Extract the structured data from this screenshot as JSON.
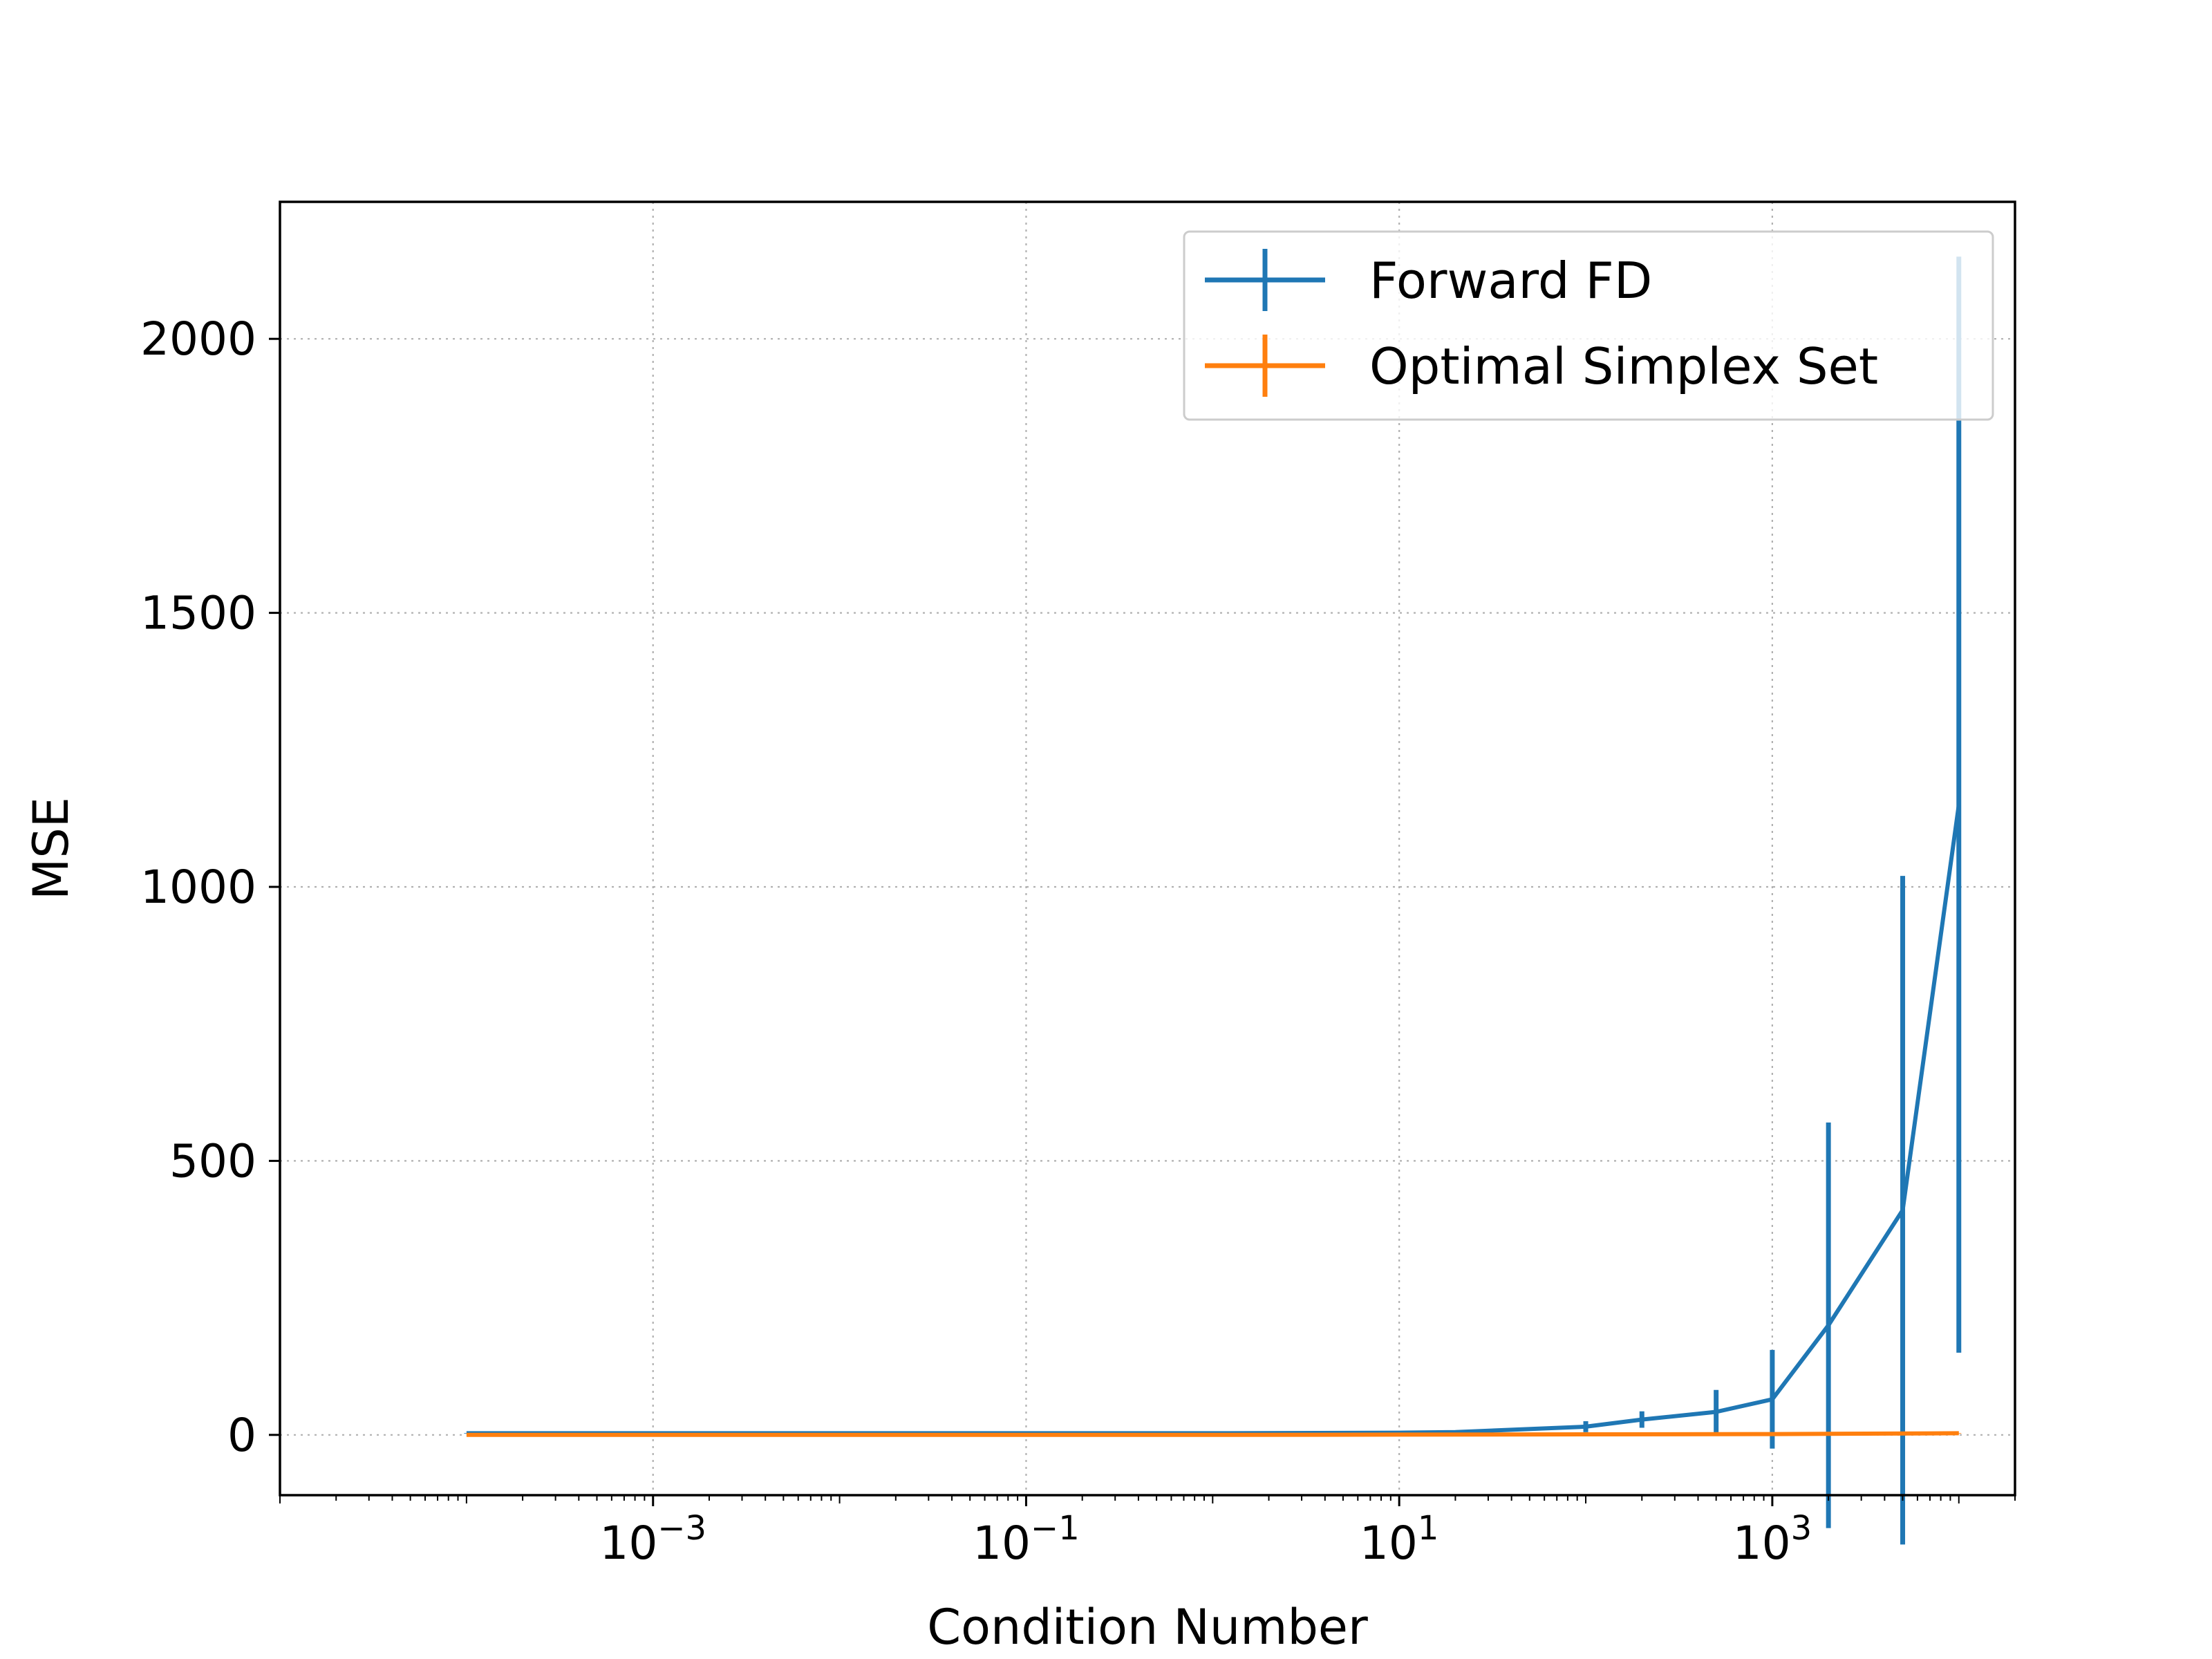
{
  "chart_data": {
    "type": "line",
    "title": "",
    "xlabel": "Condition Number",
    "ylabel": "MSE",
    "xscale": "log",
    "xlim": [
      1e-05,
      20000
    ],
    "ylim": [
      -110,
      2250
    ],
    "grid": true,
    "grid_style": "dotted",
    "legend_position": "top-right",
    "xticks": [
      {
        "value": 0.001,
        "base": "10",
        "exp": "−3"
      },
      {
        "value": 0.1,
        "base": "10",
        "exp": "−1"
      },
      {
        "value": 10,
        "base": "10",
        "exp": "1"
      },
      {
        "value": 1000,
        "base": "10",
        "exp": "3"
      }
    ],
    "yticks": [
      {
        "value": 0,
        "label": "0"
      },
      {
        "value": 500,
        "label": "500"
      },
      {
        "value": 1000,
        "label": "1000"
      },
      {
        "value": 1500,
        "label": "1500"
      },
      {
        "value": 2000,
        "label": "2000"
      }
    ],
    "series": [
      {
        "name": "Forward FD",
        "color": "#1f77b4",
        "points": [
          {
            "x": 0.0001,
            "y": 3,
            "err": 0.5
          },
          {
            "x": 0.001,
            "y": 3,
            "err": 0.5
          },
          {
            "x": 0.01,
            "y": 3,
            "err": 0.5
          },
          {
            "x": 0.1,
            "y": 3,
            "err": 0.5
          },
          {
            "x": 1,
            "y": 3,
            "err": 0.5
          },
          {
            "x": 10,
            "y": 4,
            "err": 0.8
          },
          {
            "x": 20,
            "y": 5,
            "err": 1
          },
          {
            "x": 100,
            "y": 15,
            "err": 10
          },
          {
            "x": 200,
            "y": 28,
            "err": 15
          },
          {
            "x": 500,
            "y": 42,
            "err": 40
          },
          {
            "x": 1000,
            "y": 65,
            "err": 90
          },
          {
            "x": 2000,
            "y": 200,
            "err": 370
          },
          {
            "x": 5000,
            "y": 410,
            "err": 610
          },
          {
            "x": 10000,
            "y": 1150,
            "err": 1000
          }
        ]
      },
      {
        "name": "Optimal Simplex Set",
        "color": "#ff7f0e",
        "points": [
          {
            "x": 0.0001,
            "y": 0,
            "err": 0
          },
          {
            "x": 0.001,
            "y": 0,
            "err": 0
          },
          {
            "x": 0.01,
            "y": 0,
            "err": 0
          },
          {
            "x": 0.1,
            "y": 0,
            "err": 0
          },
          {
            "x": 1,
            "y": 0,
            "err": 0
          },
          {
            "x": 10,
            "y": 0.5,
            "err": 0
          },
          {
            "x": 100,
            "y": 1,
            "err": 0
          },
          {
            "x": 1000,
            "y": 1.5,
            "err": 0
          },
          {
            "x": 10000,
            "y": 3,
            "err": 0.5
          }
        ]
      }
    ]
  }
}
